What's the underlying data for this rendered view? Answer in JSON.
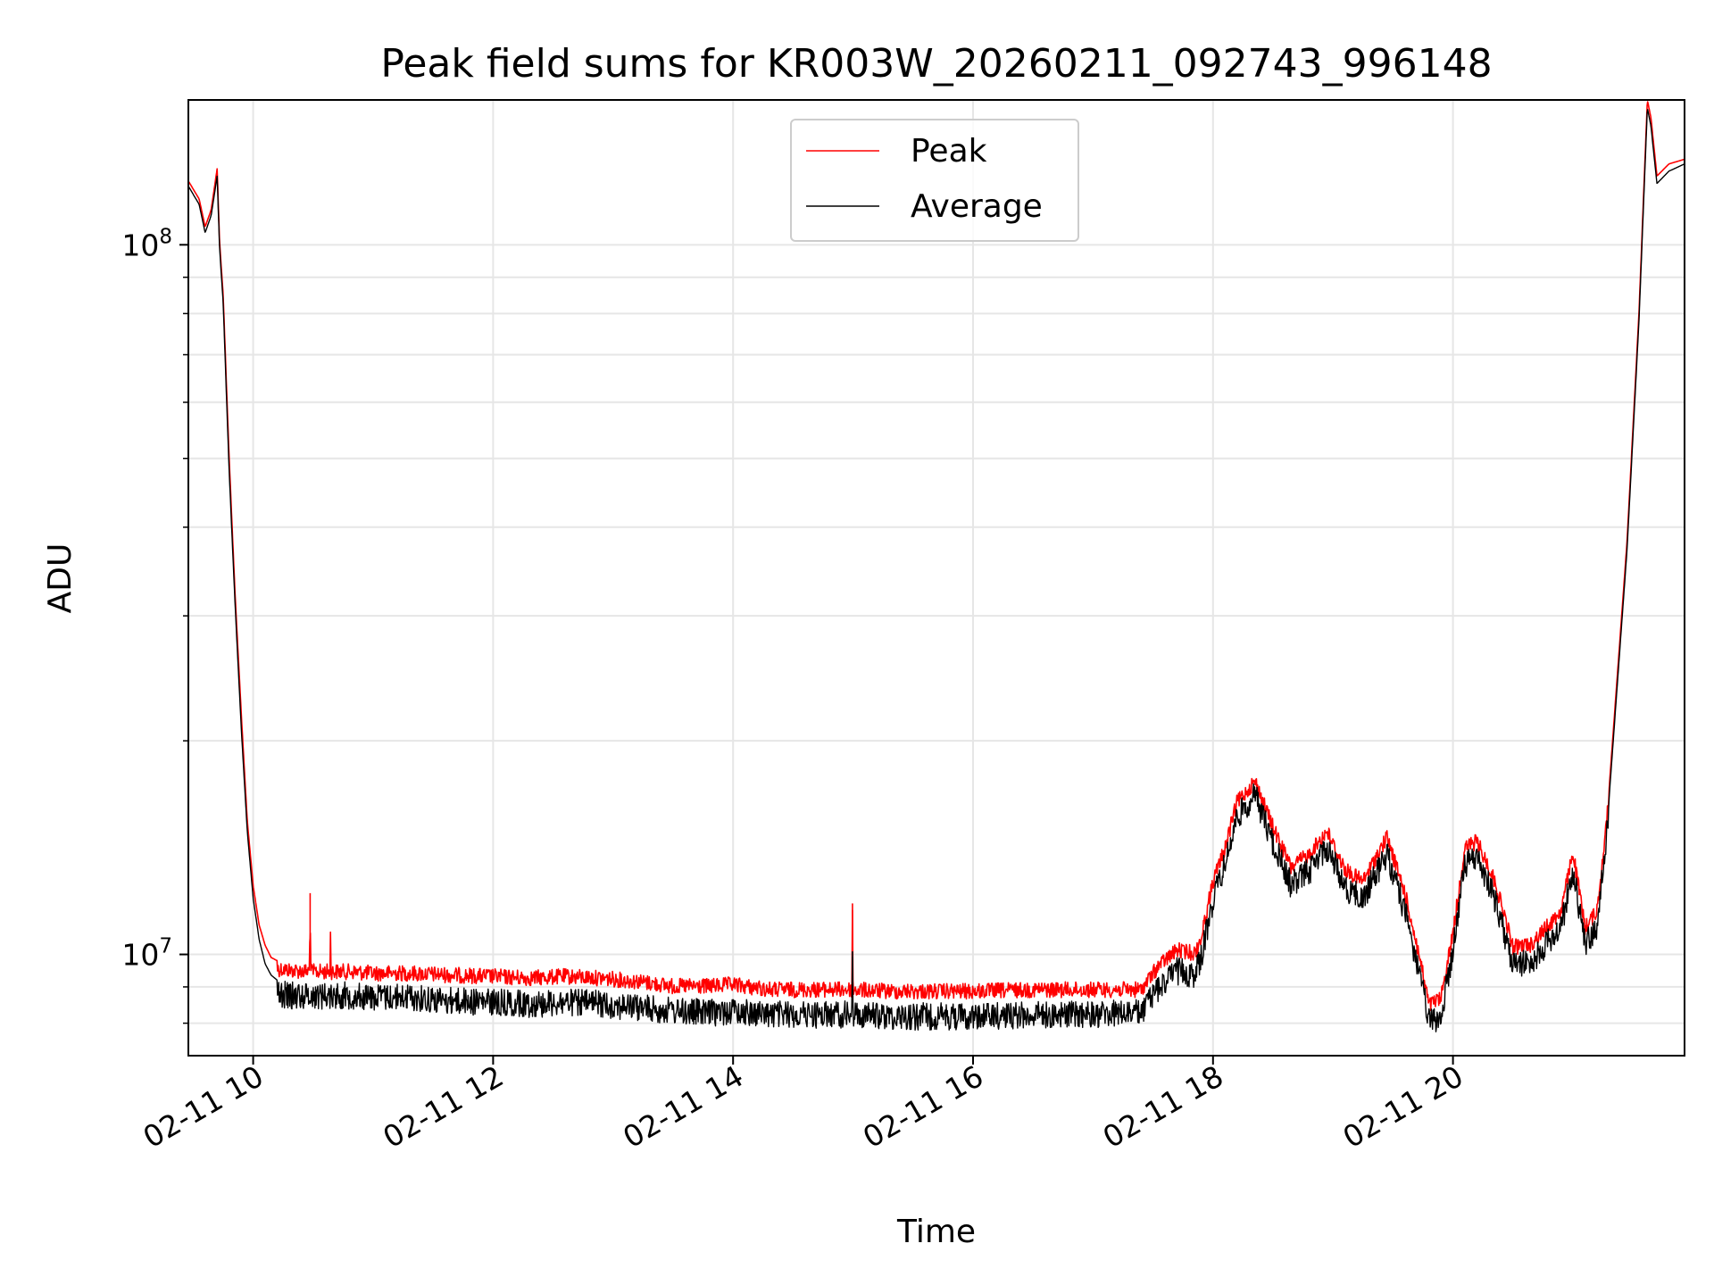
{
  "chart_data": {
    "type": "line",
    "title": "Peak field sums for KR003W_20260211_092743_996148",
    "xlabel": "Time",
    "ylabel": "ADU",
    "x_unit": "hours since 02-11 00:00",
    "xlim": [
      9.46,
      21.93
    ],
    "ylim": [
      7200000,
      160000000
    ],
    "yscale": "log",
    "grid": true,
    "legend_position": "top-center",
    "x_ticks": [
      {
        "value": 10,
        "label": "02-11 10"
      },
      {
        "value": 12,
        "label": "02-11 12"
      },
      {
        "value": 14,
        "label": "02-11 14"
      },
      {
        "value": 16,
        "label": "02-11 16"
      },
      {
        "value": 18,
        "label": "02-11 18"
      },
      {
        "value": 20,
        "label": "02-11 20"
      }
    ],
    "y_major_ticks": [
      {
        "value": 10000000,
        "base": "10",
        "exp": "7"
      },
      {
        "value": 100000000,
        "base": "10",
        "exp": "8"
      }
    ],
    "y_minor_ticks": [
      8000000,
      9000000,
      20000000,
      30000000,
      40000000,
      50000000,
      60000000,
      70000000,
      80000000,
      90000000
    ],
    "series": [
      {
        "name": "Peak",
        "color": "#ff0000",
        "x": [
          9.46,
          9.55,
          9.6,
          9.65,
          9.7,
          9.72,
          9.75,
          9.8,
          9.85,
          9.9,
          9.95,
          10.0,
          10.05,
          10.1,
          10.15,
          10.2,
          10.3,
          10.47,
          10.475,
          10.48,
          10.5,
          10.64,
          10.645,
          10.65,
          10.8,
          11.0,
          11.3,
          11.6,
          12.0,
          12.3,
          12.6,
          12.9,
          13.2,
          13.5,
          13.8,
          14.0,
          14.3,
          14.6,
          14.99,
          14.995,
          15.0,
          15.3,
          15.6,
          16.0,
          16.5,
          17.0,
          17.4,
          17.55,
          17.7,
          17.85,
          17.9,
          18.0,
          18.1,
          18.2,
          18.35,
          18.5,
          18.65,
          18.8,
          18.95,
          19.1,
          19.25,
          19.45,
          19.6,
          19.72,
          19.8,
          19.9,
          20.0,
          20.1,
          20.2,
          20.35,
          20.5,
          20.65,
          20.8,
          20.9,
          21.0,
          21.1,
          21.2,
          21.3,
          21.45,
          21.55,
          21.62,
          21.65,
          21.7,
          21.8,
          21.93
        ],
        "values": [
          123000000,
          116000000,
          106000000,
          112000000,
          128000000,
          101000000,
          85000000,
          50000000,
          32000000,
          22000000,
          15500000,
          12500000,
          11000000,
          10300000,
          9900000,
          9800000,
          9750000,
          9700000,
          12200000,
          9700000,
          9700000,
          9700000,
          11000000,
          9700000,
          9700000,
          9650000,
          9650000,
          9600000,
          9550000,
          9500000,
          9550000,
          9500000,
          9400000,
          9250000,
          9250000,
          9300000,
          9150000,
          9150000,
          9150000,
          11800000,
          9150000,
          9100000,
          9100000,
          9100000,
          9150000,
          9150000,
          9150000,
          9900000,
          10400000,
          10300000,
          10800000,
          13000000,
          14500000,
          16800000,
          18000000,
          15500000,
          13600000,
          14200000,
          15300000,
          13500000,
          13000000,
          15000000,
          12500000,
          10200000,
          8700000,
          8900000,
          11000000,
          14500000,
          14800000,
          13000000,
          10500000,
          10600000,
          11300000,
          11800000,
          14300000,
          11200000,
          11800000,
          17000000,
          38000000,
          80000000,
          160000000,
          151000000,
          125000000,
          130000000,
          132000000
        ]
      },
      {
        "name": "Average",
        "color": "#000000",
        "x": [
          9.46,
          9.55,
          9.6,
          9.65,
          9.7,
          9.72,
          9.75,
          9.8,
          9.85,
          9.9,
          9.95,
          10.0,
          10.05,
          10.1,
          10.15,
          10.2,
          10.3,
          10.5,
          10.8,
          11.0,
          11.3,
          11.6,
          12.0,
          12.3,
          12.6,
          12.9,
          13.2,
          13.5,
          13.8,
          14.0,
          14.3,
          14.6,
          14.99,
          14.995,
          15.0,
          15.3,
          15.6,
          16.0,
          16.5,
          17.0,
          17.4,
          17.55,
          17.7,
          17.85,
          17.9,
          18.0,
          18.1,
          18.2,
          18.35,
          18.5,
          18.65,
          18.8,
          18.95,
          19.1,
          19.25,
          19.45,
          19.6,
          19.72,
          19.8,
          19.9,
          20.0,
          20.1,
          20.2,
          20.35,
          20.5,
          20.65,
          20.8,
          20.9,
          21.0,
          21.1,
          21.2,
          21.3,
          21.45,
          21.55,
          21.62,
          21.65,
          21.7,
          21.8,
          21.93
        ],
        "values": [
          121000000,
          114000000,
          104000000,
          110000000,
          125000000,
          99000000,
          83000000,
          48000000,
          31000000,
          21000000,
          15000000,
          12000000,
          10500000,
          9700000,
          9350000,
          9200000,
          9150000,
          9150000,
          9150000,
          9100000,
          9100000,
          9000000,
          8950000,
          8900000,
          8950000,
          8900000,
          8800000,
          8700000,
          8650000,
          8700000,
          8600000,
          8600000,
          8600000,
          10100000,
          8600000,
          8550000,
          8550000,
          8550000,
          8600000,
          8600000,
          8650000,
          9400000,
          9900000,
          9800000,
          10300000,
          12500000,
          14000000,
          16300000,
          17500000,
          15000000,
          13100000,
          13700000,
          14800000,
          13000000,
          12500000,
          14500000,
          12000000,
          9800000,
          8400000,
          8500000,
          10600000,
          14000000,
          14300000,
          12500000,
          10100000,
          10200000,
          10900000,
          11400000,
          13800000,
          10800000,
          11400000,
          16500000,
          37000000,
          78000000,
          156000000,
          147000000,
          122000000,
          127000000,
          130000000
        ]
      }
    ]
  }
}
